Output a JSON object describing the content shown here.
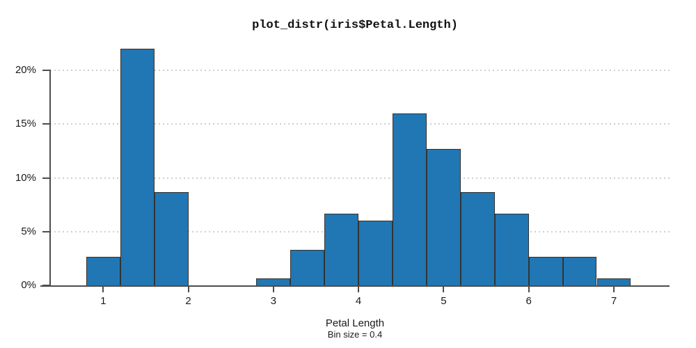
{
  "title": "plot_distr(iris$Petal.Length)",
  "chart_data": {
    "type": "bar",
    "subtype": "histogram",
    "title": "plot_distr(iris$Petal.Length)",
    "xlabel": "Petal Length",
    "caption": "Bin size = 0.4",
    "bin_size": 0.4,
    "x_ticks": [
      1,
      2,
      3,
      4,
      5,
      6,
      7
    ],
    "x_tick_labels": [
      "1",
      "2",
      "3",
      "4",
      "5",
      "6",
      "7"
    ],
    "y_ticks": [
      0,
      5,
      10,
      15,
      20
    ],
    "y_tick_labels": [
      "0%",
      "5%",
      "10%",
      "15%",
      "20%"
    ],
    "xlim": [
      0.26,
      7.66
    ],
    "ylim": [
      0,
      22
    ],
    "grid": "horizontal dotted lines at each y tick except 0",
    "legend": "none",
    "bins": [
      {
        "x0": 0.8,
        "x1": 1.2,
        "pct": 2.67
      },
      {
        "x0": 1.2,
        "x1": 1.6,
        "pct": 22.0
      },
      {
        "x0": 1.6,
        "x1": 2.0,
        "pct": 8.67
      },
      {
        "x0": 2.0,
        "x1": 2.4,
        "pct": 0
      },
      {
        "x0": 2.4,
        "x1": 2.8,
        "pct": 0
      },
      {
        "x0": 2.8,
        "x1": 3.2,
        "pct": 0.67
      },
      {
        "x0": 3.2,
        "x1": 3.6,
        "pct": 3.33
      },
      {
        "x0": 3.6,
        "x1": 4.0,
        "pct": 6.67
      },
      {
        "x0": 4.0,
        "x1": 4.4,
        "pct": 6.0
      },
      {
        "x0": 4.4,
        "x1": 4.8,
        "pct": 16.0
      },
      {
        "x0": 4.8,
        "x1": 5.2,
        "pct": 12.67
      },
      {
        "x0": 5.2,
        "x1": 5.6,
        "pct": 8.67
      },
      {
        "x0": 5.6,
        "x1": 6.0,
        "pct": 6.67
      },
      {
        "x0": 6.0,
        "x1": 6.4,
        "pct": 2.67
      },
      {
        "x0": 6.4,
        "x1": 6.8,
        "pct": 2.67
      },
      {
        "x0": 6.8,
        "x1": 7.2,
        "pct": 0.67
      }
    ],
    "colors": {
      "bar_fill": "#2077b4",
      "bar_edge": "#333333",
      "axis": "#4d4d4d",
      "grid": "#cfcfcf",
      "text": "#1a1a1a"
    }
  }
}
